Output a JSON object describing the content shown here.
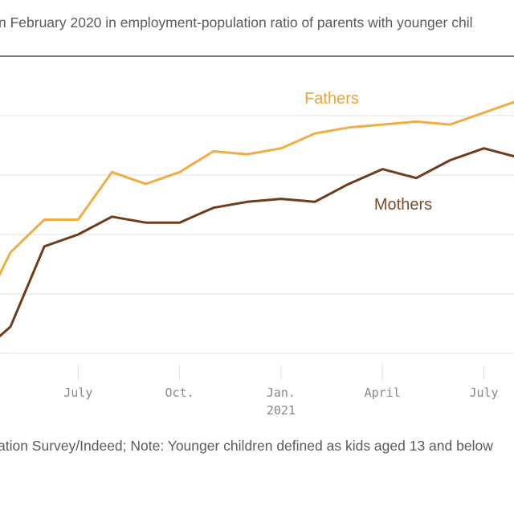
{
  "subtitle": "n February 2020 in employment-population ratio of parents with younger chil",
  "footer": "ation Survey/Indeed; Note: Younger children defined as kids aged 13 and below",
  "chart_data": {
    "type": "line",
    "x": [
      "2020-04",
      "2020-05",
      "2020-06",
      "2020-07",
      "2020-08",
      "2020-09",
      "2020-10",
      "2020-11",
      "2020-12",
      "2021-01",
      "2021-02",
      "2021-03",
      "2021-04",
      "2021-05",
      "2021-06",
      "2021-07",
      "2021-08"
    ],
    "series": [
      {
        "name": "Fathers",
        "color": "#f0ad45",
        "values": [
          -8.9,
          -6.6,
          -5.5,
          -5.5,
          -3.9,
          -4.3,
          -3.9,
          -3.2,
          -3.3,
          -3.1,
          -2.6,
          -2.4,
          -2.3,
          -2.2,
          -2.3,
          -1.9,
          -1.5
        ]
      },
      {
        "name": "Mothers",
        "color": "#6e3c1a",
        "values": [
          -10.1,
          -9.1,
          -6.4,
          -6.0,
          -5.4,
          -5.6,
          -5.6,
          -5.1,
          -4.9,
          -4.8,
          -4.9,
          -4.3,
          -3.8,
          -4.1,
          -3.5,
          -3.1,
          -3.4
        ]
      }
    ],
    "label_colors": {
      "Fathers": "#e8a33d",
      "Mothers": "#7a4b27"
    },
    "ylim": [
      -10,
      0
    ],
    "grid": true,
    "x_ticks": [
      {
        "date": "2020-07",
        "label": "July",
        "sub": ""
      },
      {
        "date": "2020-10",
        "label": "Oct.",
        "sub": ""
      },
      {
        "date": "2021-01",
        "label": "Jan.",
        "sub": "2021"
      },
      {
        "date": "2021-04",
        "label": "April",
        "sub": ""
      },
      {
        "date": "2021-07",
        "label": "July",
        "sub": ""
      }
    ]
  }
}
